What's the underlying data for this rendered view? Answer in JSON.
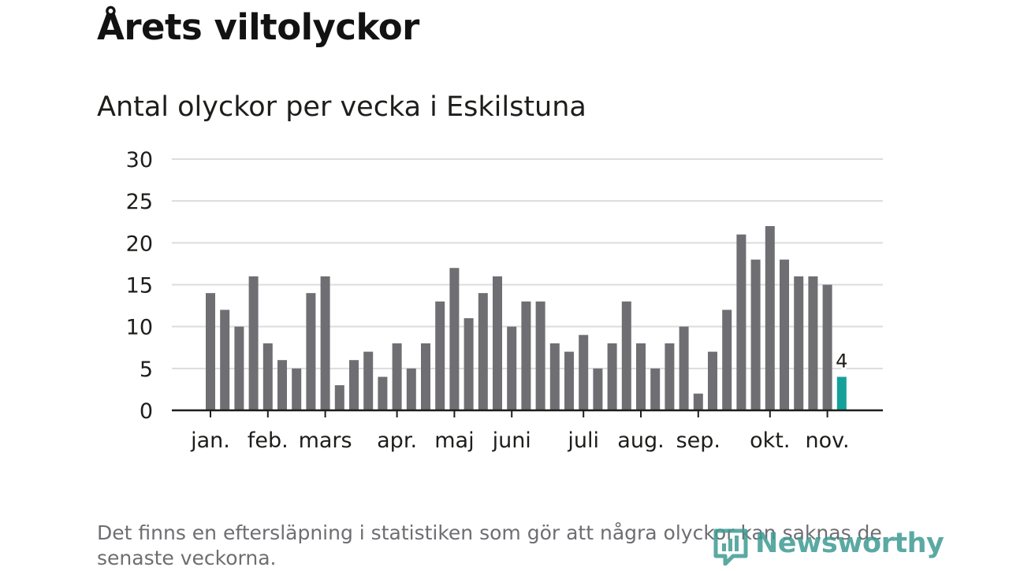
{
  "title": "Årets viltolyckor",
  "subtitle": "Antal olyckor per vecka i Eskilstuna",
  "footnote": "Det finns en eftersläpning i statistiken som gör att några olyckor kan saknas de senaste veckorna.",
  "logo": {
    "text": "Newsworthy",
    "icon": "bar-chart-logo-icon"
  },
  "colors": {
    "bar": "#6f6e73",
    "highlight": "#14a19a",
    "grid": "#dcdcdc",
    "axis": "#1d1d1b",
    "logo": "#3f9b94"
  },
  "chart_data": {
    "type": "bar",
    "values": [
      14,
      12,
      10,
      16,
      8,
      6,
      5,
      14,
      16,
      3,
      6,
      7,
      4,
      8,
      5,
      8,
      13,
      17,
      11,
      14,
      16,
      10,
      13,
      13,
      8,
      7,
      9,
      5,
      8,
      13,
      8,
      5,
      8,
      10,
      2,
      7,
      12,
      21,
      18,
      22,
      18,
      16,
      16,
      15,
      4
    ],
    "highlight_index": 44,
    "highlight_label": "4",
    "ylim": [
      0,
      30
    ],
    "yticks": [
      0,
      5,
      10,
      15,
      20,
      25,
      30
    ],
    "month_labels": [
      {
        "label": "jan.",
        "week": 0
      },
      {
        "label": "feb.",
        "week": 4
      },
      {
        "label": "mars",
        "week": 8
      },
      {
        "label": "apr.",
        "week": 13
      },
      {
        "label": "maj",
        "week": 17
      },
      {
        "label": "juni",
        "week": 21
      },
      {
        "label": "juli",
        "week": 26
      },
      {
        "label": "aug.",
        "week": 30
      },
      {
        "label": "sep.",
        "week": 34
      },
      {
        "label": "okt.",
        "week": 39
      },
      {
        "label": "nov.",
        "week": 43
      }
    ],
    "grid": true
  }
}
